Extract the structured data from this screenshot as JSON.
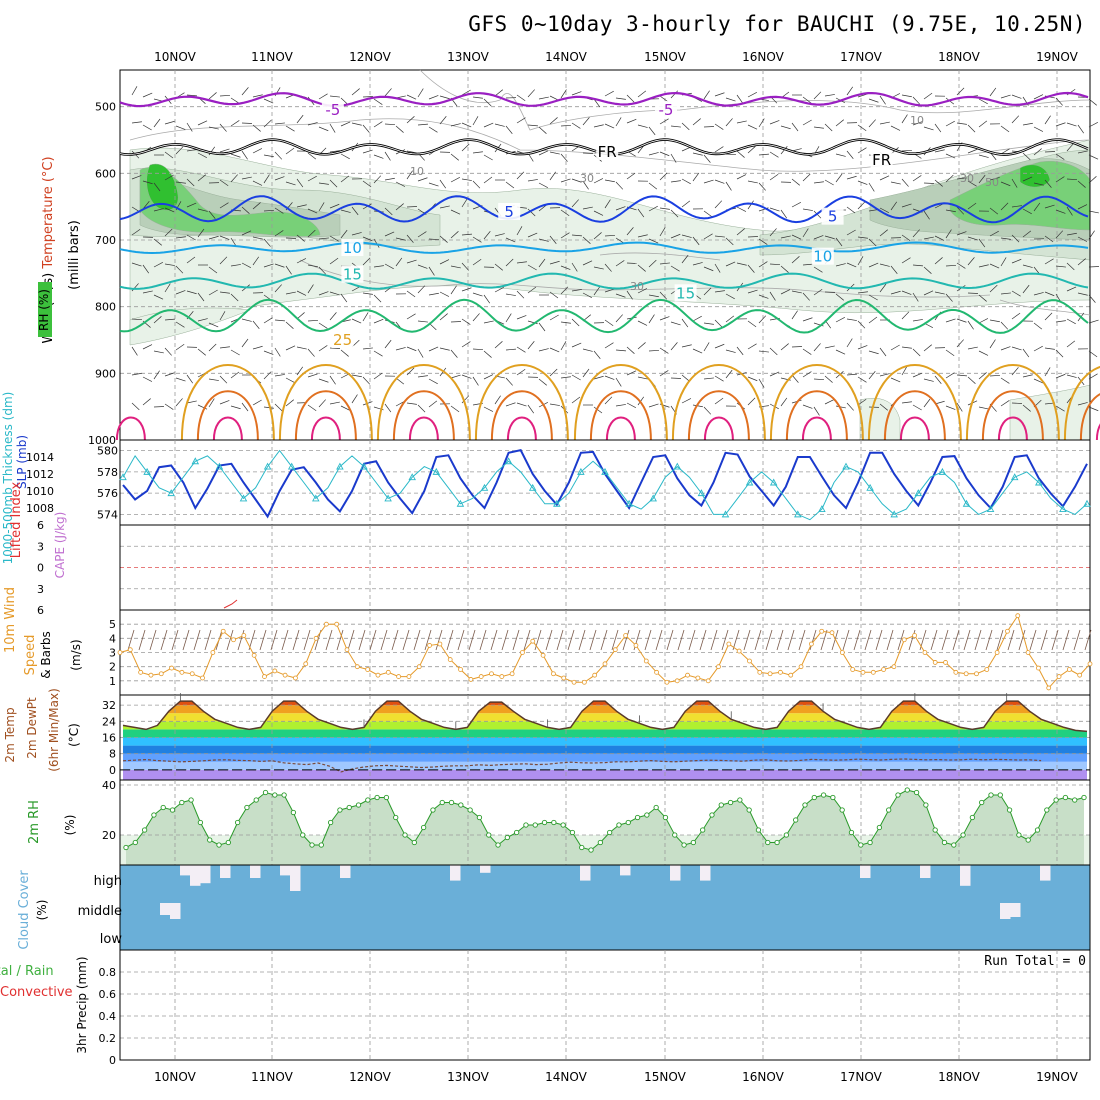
{
  "title": "GFS 0~10day 3-hourly for BAUCHI (9.75E, 10.25N)",
  "colors": {
    "grid": "#9a9a9a",
    "temp_purple": "#9a1fc2",
    "temp_black": "#000000",
    "temp_blue": "#1a3fe0",
    "temp_cyan": "#19a3e6",
    "temp_teal": "#22b8b0",
    "temp_green": "#22b870",
    "temp_orange": "#e0a020",
    "temp_darkorange": "#e07020",
    "temp_magenta": "#e0207f",
    "slp": "#1a3acc",
    "thickness": "#2ab8c8",
    "wind": "#e59a2a",
    "rh": "#2a9a2a",
    "cloud": "#6aafd8",
    "lifted": "#e03030"
  },
  "chart_data": [
    {
      "type": "contour",
      "name": "upper-air",
      "xlabel_top": [
        "10NOV",
        "11NOV",
        "12NOV",
        "13NOV",
        "14NOV",
        "15NOV",
        "16NOV",
        "17NOV",
        "18NOV",
        "19NOV"
      ],
      "ylabel": "(milli bars)",
      "ylabel_parts": [
        "Wind (m/s)",
        "Temperature (°C)",
        "RH (%)"
      ],
      "yticks": [
        500,
        600,
        700,
        800,
        900,
        1000
      ],
      "ylim": [
        445,
        1000
      ],
      "isotherm_labels": [
        {
          "value": "-5",
          "positions": [
            [
              1.6,
              505
            ],
            [
              5.0,
              505
            ]
          ]
        },
        {
          "value": "FR",
          "positions": [
            [
              4.4,
              568
            ],
            [
              7.2,
              580
            ]
          ]
        },
        {
          "value": "5",
          "positions": [
            [
              3.4,
              658
            ],
            [
              6.7,
              665
            ]
          ]
        },
        {
          "value": "10",
          "positions": [
            [
              1.8,
              712
            ],
            [
              6.6,
              725
            ]
          ]
        },
        {
          "value": "15",
          "positions": [
            [
              1.8,
              752
            ],
            [
              5.2,
              780
            ]
          ]
        },
        {
          "value": "25",
          "positions": [
            [
              1.7,
              850
            ]
          ]
        }
      ],
      "rh_labels": [
        "10",
        "30",
        "50"
      ]
    },
    {
      "type": "line",
      "name": "slp-thickness",
      "ylabel_left": "1000-500mb Thickness (dm)",
      "ylabel_right": "SLP (mb)",
      "yticks_left": [
        574,
        576,
        578,
        580
      ],
      "yticks_right": [
        1008,
        1010,
        1012,
        1014
      ],
      "ylim_left": [
        573,
        581
      ],
      "series": [
        {
          "name": "SLP",
          "values": [
            1010.7,
            1009.0,
            1010.0,
            1012.8,
            1013.0,
            1011.0,
            1008.0,
            1010.3,
            1013.0,
            1013.2,
            1011.0,
            1009.0,
            1007.0,
            1010.0,
            1012.5,
            1012.8,
            1011.0,
            1009.0,
            1007.6,
            1010.0,
            1013.2,
            1013.5,
            1011.0,
            1009.1,
            1007.4,
            1010.0,
            1014.0,
            1014.2,
            1011.5,
            1009.5,
            1008.0,
            1011.0,
            1014.5,
            1014.8,
            1012.0,
            1010.0,
            1008.4,
            1011.0,
            1014.5,
            1014.6,
            1012.0,
            1010.0,
            1008.0,
            1011.0,
            1014.0,
            1014.2,
            1011.5,
            1009.5,
            1008.3,
            1011.0,
            1014.5,
            1014.3,
            1011.7,
            1010.0,
            1008.3,
            1010.5,
            1014.0,
            1014.0,
            1011.7,
            1009.5,
            1008.0,
            1011.0,
            1014.5,
            1014.5,
            1012.0,
            1010.0,
            1008.3,
            1011.0,
            1014.0,
            1014.1,
            1011.5,
            1009.5,
            1008.0,
            1010.5,
            1014.0,
            1014.2,
            1011.5,
            1009.7,
            1008.2,
            1010.5,
            1013.2
          ]
        },
        {
          "name": "Thickness",
          "values": [
            577.5,
            579.5,
            578.0,
            576.5,
            576.0,
            577.5,
            579.0,
            579.5,
            578.5,
            577.0,
            575.5,
            576.5,
            578.5,
            580.0,
            578.5,
            577.0,
            575.5,
            576.5,
            578.5,
            579.5,
            578.5,
            577.0,
            575.5,
            576.0,
            577.5,
            578.5,
            578.0,
            576.5,
            575.0,
            575.5,
            576.5,
            578.0,
            579.0,
            578.0,
            576.5,
            575.0,
            575.0,
            576.0,
            578.0,
            579.0,
            578.0,
            576.5,
            575.0,
            574.5,
            575.5,
            577.5,
            578.5,
            577.5,
            576.0,
            574.0,
            574.0,
            575.5,
            577.0,
            578.0,
            577.0,
            575.5,
            574.0,
            573.5,
            574.5,
            577.0,
            578.5,
            578.0,
            576.5,
            575.0,
            574.0,
            574.5,
            576.0,
            577.5,
            578.0,
            577.0,
            575.0,
            574.0,
            574.5,
            576.0,
            577.5,
            578.0,
            577.0,
            575.5,
            574.5,
            574.0,
            575.0
          ]
        }
      ]
    },
    {
      "type": "line",
      "name": "lifted-index-cape",
      "ylabel_left": "Lifted Index",
      "ylabel_right": "CAPE (J/kg)",
      "yticks": [
        -6,
        -3,
        0,
        3,
        6
      ],
      "ytick_labels": [
        "6",
        "3",
        "0",
        "3",
        "6"
      ],
      "ylim": [
        -6,
        6
      ],
      "series": [
        {
          "name": "Lifted Index",
          "values": [
            6.0,
            6.0,
            6.0,
            6.0,
            6.0,
            6.0,
            6.0,
            6.0,
            6.0,
            6.0,
            6.0,
            6.0,
            6.0,
            6.0,
            6.0,
            6.0,
            6.0,
            6.0,
            6.0,
            6.0,
            6.0,
            6.0,
            6.0,
            6.0,
            5.4,
            5.0,
            6.0,
            6.0
          ]
        }
      ]
    },
    {
      "type": "line",
      "name": "10m-wind",
      "ylabel": "10m Wind Speed & Barbs (m/s)",
      "yticks": [
        1,
        2,
        3,
        4,
        5
      ],
      "ylim": [
        0,
        6
      ],
      "series": [
        {
          "name": "Wind speed",
          "values": [
            3.0,
            3.2,
            1.6,
            1.4,
            1.5,
            1.9,
            1.6,
            1.5,
            1.2,
            3.0,
            4.5,
            3.9,
            4.2,
            2.8,
            1.3,
            1.7,
            1.4,
            1.2,
            2.2,
            4.0,
            5.0,
            5.0,
            3.2,
            2.0,
            1.8,
            1.4,
            1.6,
            1.3,
            1.3,
            2.0,
            3.5,
            3.6,
            2.5,
            1.8,
            1.1,
            1.3,
            1.5,
            1.3,
            1.5,
            3.0,
            3.8,
            2.8,
            1.5,
            1.2,
            0.9,
            0.9,
            1.4,
            2.2,
            3.2,
            4.2,
            3.5,
            2.4,
            1.6,
            0.9,
            1.0,
            1.4,
            1.2,
            1.0,
            2.0,
            3.6,
            3.1,
            2.4,
            1.6,
            1.5,
            1.6,
            1.4,
            2.0,
            3.6,
            4.5,
            4.4,
            3.0,
            1.8,
            1.6,
            1.6,
            1.8,
            2.0,
            3.9,
            4.2,
            3.0,
            2.3,
            2.3,
            1.6,
            1.5,
            1.5,
            1.8,
            3.0,
            4.5,
            5.6,
            3.0,
            1.9,
            0.5,
            1.3,
            1.8,
            1.4,
            2.2
          ]
        }
      ]
    },
    {
      "type": "area",
      "name": "2m-temp",
      "ylabel": "2m Temp 2m DewPt (6hr Min/Max) (°C)",
      "yticks": [
        0,
        8,
        16,
        24,
        32
      ],
      "ylim": [
        -5,
        37
      ],
      "series": [
        {
          "name": "2m Temp",
          "values": [
            22,
            21,
            20,
            22,
            29,
            34,
            34,
            29,
            25,
            23,
            21,
            20,
            21,
            29,
            34,
            34,
            29,
            25,
            23,
            21,
            20,
            21,
            29,
            34,
            34,
            29,
            25,
            23,
            21,
            20,
            21,
            29,
            33.5,
            33.5,
            29,
            25,
            23,
            21,
            20,
            21,
            29,
            34,
            34,
            29,
            25,
            23,
            21,
            20,
            21,
            29,
            34,
            34,
            29,
            25,
            23,
            21,
            20,
            21,
            29,
            34,
            34,
            29,
            25,
            23,
            21,
            20,
            21,
            29,
            34,
            34,
            29,
            25,
            23,
            21,
            20,
            21,
            29,
            34,
            34,
            29,
            25,
            23,
            21,
            19.5,
            19
          ]
        },
        {
          "name": "2m DewPt",
          "values": [
            4.5,
            4.8,
            5.1,
            4.6,
            4.3,
            4.0,
            4.2,
            4.5,
            4.9,
            5.0,
            4.7,
            4.6,
            4.2,
            4.5,
            3.5,
            3.0,
            2.6,
            3.4,
            1.8,
            -1.0,
            0.5,
            1.4,
            2.0,
            2.2,
            1.8,
            1.5,
            1.2,
            1.4,
            1.8,
            2.0,
            2.0,
            2.5,
            2.2,
            2.6,
            2.8,
            3.0,
            2.6,
            2.8,
            3.4,
            3.8,
            3.5,
            3.4,
            3.6,
            4.0,
            4.0,
            4.3,
            4.6,
            4.2,
            4.0,
            4.3,
            4.6,
            4.8,
            4.7,
            4.5,
            4.3,
            4.8,
            5.0,
            4.5,
            4.4,
            4.7,
            5.2,
            5.0,
            4.8,
            5.0,
            5.3,
            5.1,
            4.9,
            5.2,
            5.4,
            5.2,
            5.0,
            5.1,
            4.9,
            5.0,
            5.3,
            5.0,
            5.2,
            5.1,
            4.9,
            5.0,
            4.6
          ]
        }
      ]
    },
    {
      "type": "area",
      "name": "2m-rh",
      "ylabel": "2m RH (%)",
      "yticks": [
        20,
        40
      ],
      "ylim": [
        8,
        42
      ],
      "series": [
        {
          "name": "2m RH",
          "values": [
            15,
            17,
            22,
            28,
            31,
            30,
            33,
            34,
            25,
            18,
            16,
            17,
            25,
            31,
            34,
            37,
            36,
            36,
            29,
            20,
            16,
            16,
            25,
            30,
            31,
            32,
            34,
            35,
            35,
            27,
            20,
            17,
            23,
            30,
            33,
            33,
            32,
            30,
            27,
            20,
            16,
            19,
            21,
            24,
            24,
            25,
            25,
            24,
            21,
            15,
            14,
            17,
            21,
            24,
            25,
            27,
            28,
            31,
            27,
            20,
            16,
            17,
            22,
            28,
            32,
            33,
            34,
            30,
            22,
            17,
            17,
            20,
            26,
            32,
            35,
            36,
            35,
            30,
            21,
            16,
            17,
            23,
            30,
            36,
            38,
            37,
            32,
            22,
            17,
            16,
            20,
            27,
            33,
            36,
            36,
            30,
            20,
            18,
            22,
            30,
            34,
            35,
            34,
            35
          ]
        }
      ]
    },
    {
      "type": "bar",
      "name": "cloud-cover",
      "ylabel": "Cloud Cover (%)",
      "levels": [
        "high",
        "middle",
        "low"
      ],
      "series": [
        {
          "name": "high",
          "values": [
            0,
            0,
            0,
            0,
            0,
            0,
            40,
            80,
            70,
            0,
            50,
            0,
            0,
            50,
            0,
            0,
            40,
            100,
            0,
            0,
            0,
            0,
            50,
            0,
            0,
            0,
            0,
            0,
            0,
            0,
            0,
            0,
            0,
            60,
            0,
            0,
            30,
            0,
            0,
            0,
            0,
            0,
            0,
            0,
            0,
            0,
            60,
            0,
            0,
            0,
            40,
            0,
            0,
            0,
            0,
            60,
            0,
            0,
            60,
            0,
            0,
            0,
            0,
            0,
            0,
            0,
            0,
            0,
            0,
            0,
            0,
            0,
            0,
            0,
            50,
            0,
            0,
            0,
            0,
            0,
            50,
            0,
            0,
            0,
            80,
            0,
            0,
            0,
            0,
            0,
            0,
            0,
            60,
            0,
            0,
            0,
            0
          ]
        },
        {
          "name": "middle",
          "values": [
            100,
            100,
            100,
            100,
            40,
            20,
            100,
            100,
            100,
            100,
            100,
            100,
            100,
            100,
            100,
            100,
            100,
            100,
            100,
            100,
            100,
            100,
            100,
            100,
            100,
            100,
            100,
            100,
            100,
            100,
            100,
            100,
            100,
            100,
            100,
            100,
            100,
            100,
            100,
            100,
            100,
            100,
            100,
            100,
            100,
            100,
            100,
            100,
            100,
            100,
            100,
            100,
            100,
            100,
            100,
            100,
            100,
            100,
            100,
            100,
            100,
            100,
            100,
            100,
            100,
            100,
            100,
            100,
            100,
            100,
            100,
            100,
            100,
            100,
            100,
            100,
            100,
            100,
            100,
            100,
            100,
            100,
            100,
            100,
            100,
            100,
            100,
            100,
            20,
            30,
            100,
            100,
            100,
            100,
            100,
            100,
            100
          ]
        }
      ]
    },
    {
      "type": "bar",
      "name": "precip",
      "ylabel_left": "Total / Rain",
      "ylabel_left2": "Convective",
      "ylabel": "3hr Precip (mm)",
      "yticks": [
        0,
        0.2,
        0.4,
        0.6,
        0.8
      ],
      "ylim": [
        0,
        1
      ],
      "run_total": "Run Total = 0",
      "values": []
    }
  ],
  "x_axis": {
    "dates": [
      "10NOV",
      "11NOV",
      "12NOV",
      "13NOV",
      "14NOV",
      "15NOV",
      "16NOV",
      "17NOV",
      "18NOV",
      "19NOV"
    ]
  }
}
